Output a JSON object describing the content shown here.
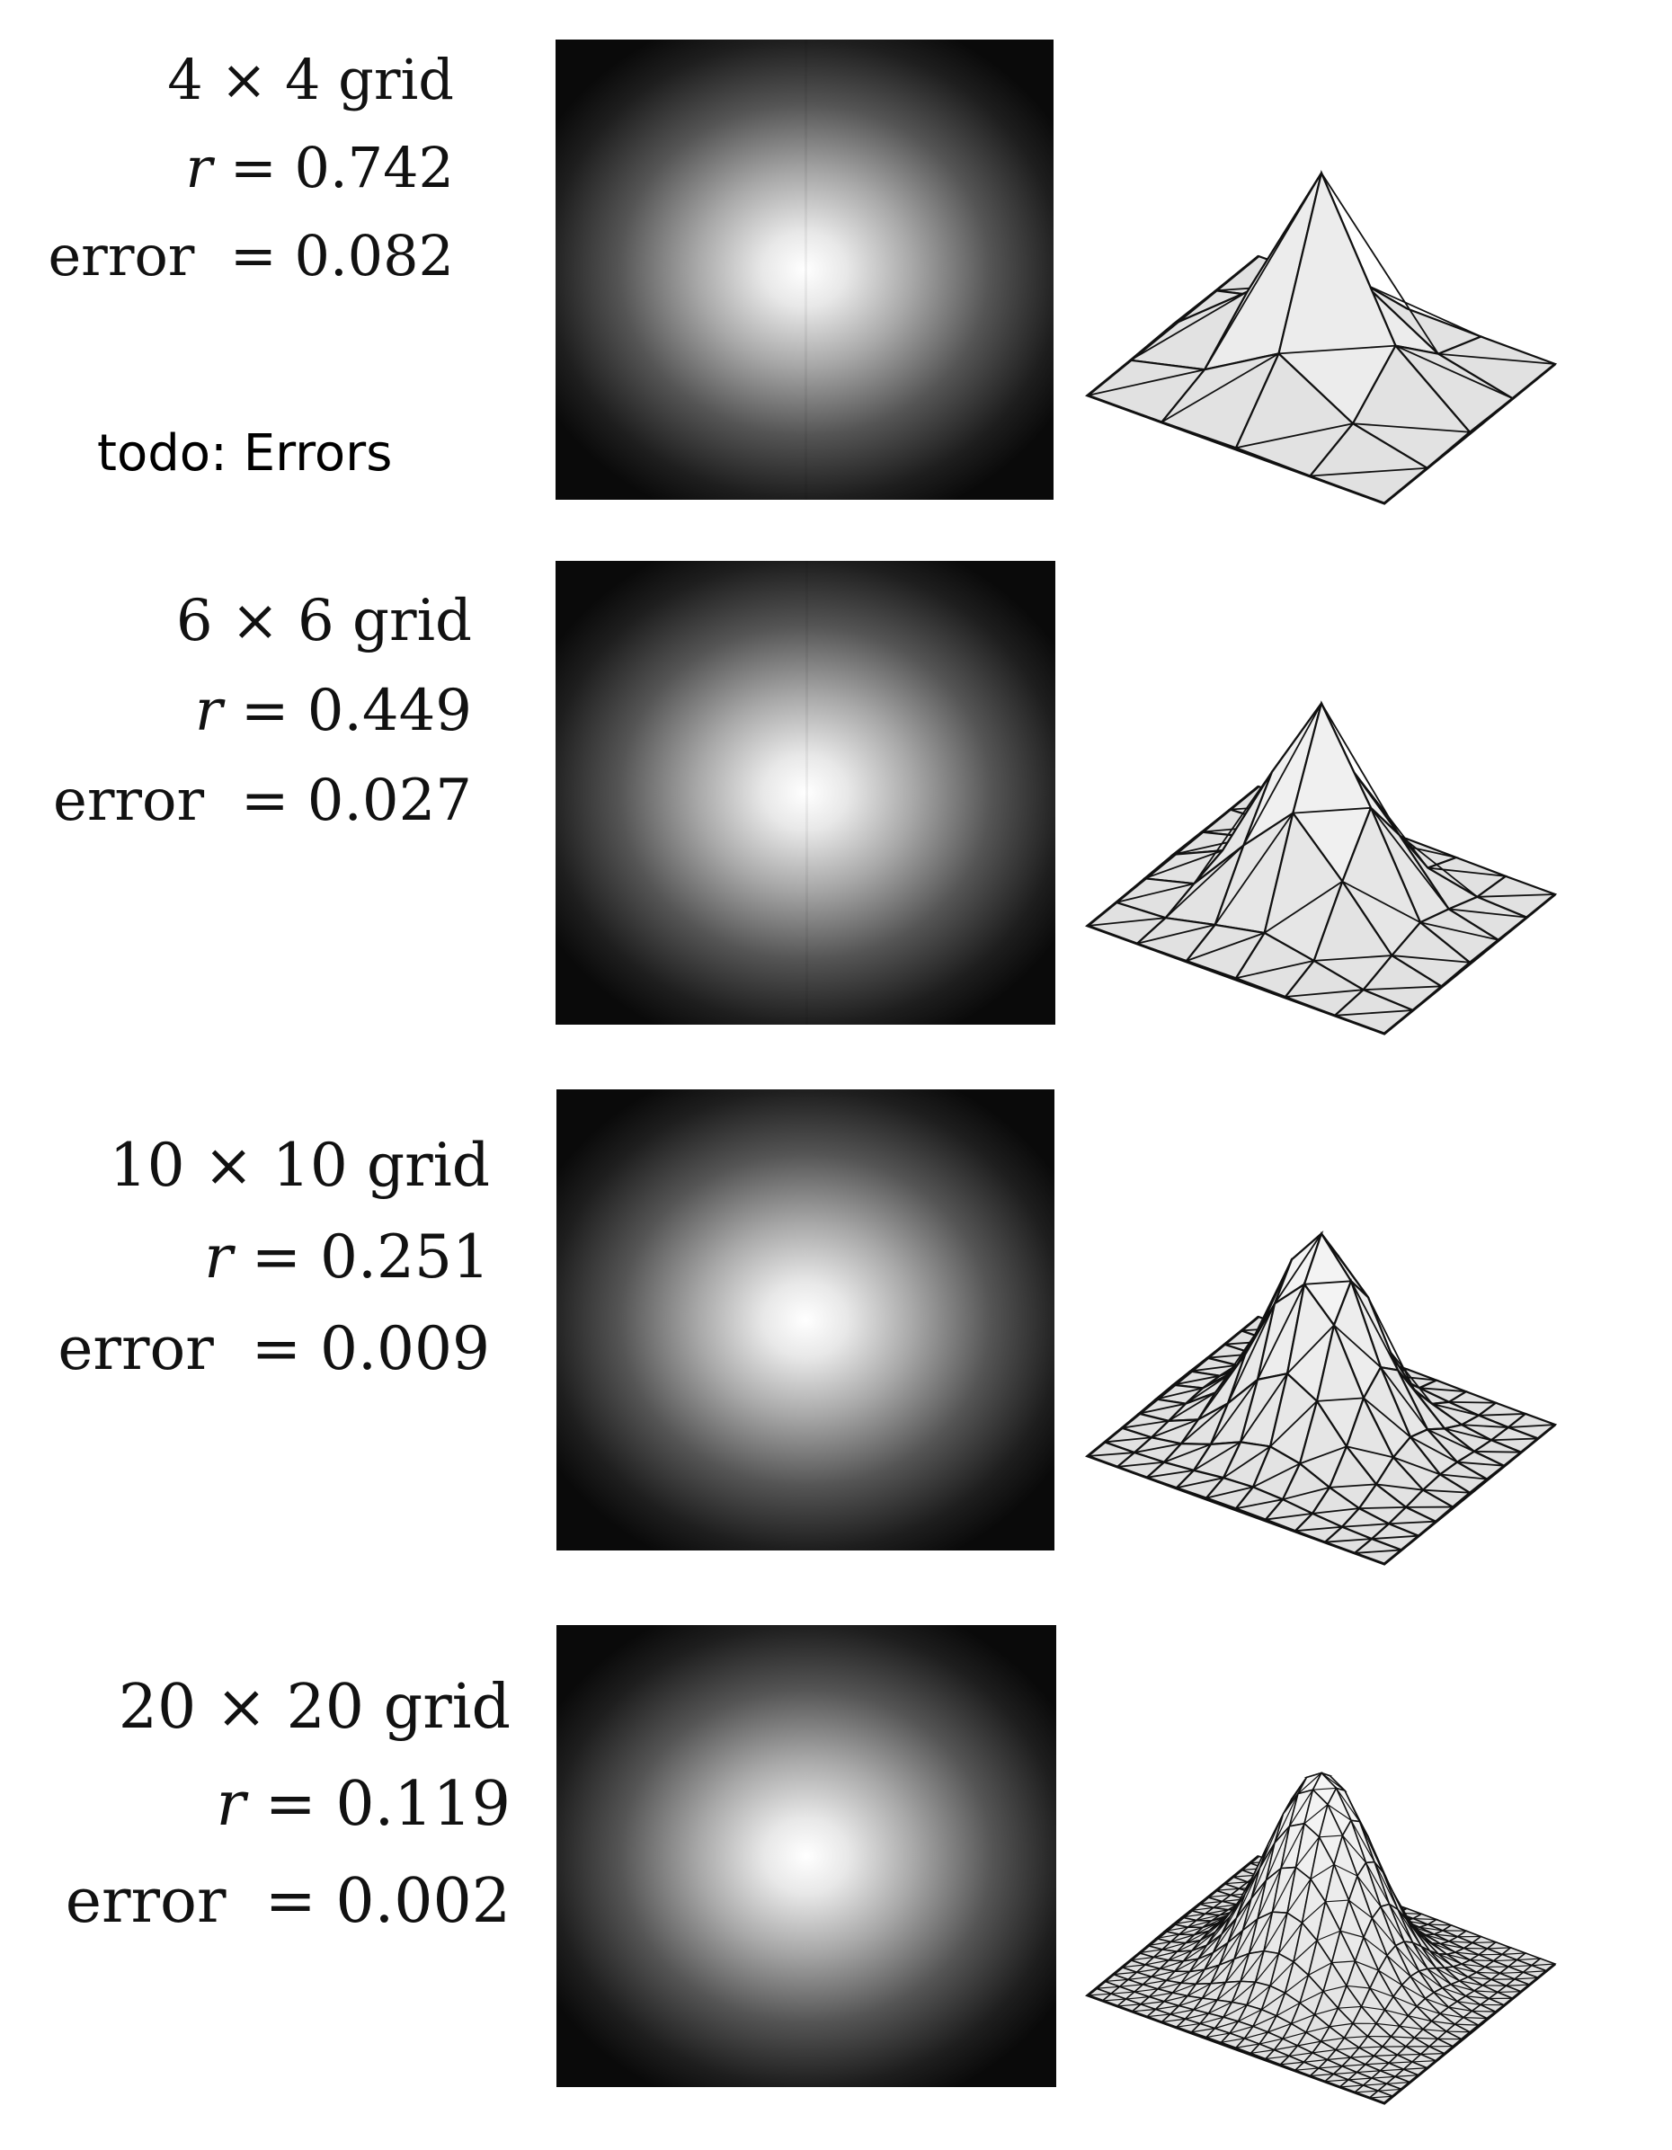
{
  "rows": [
    {
      "grid": "4 × 4 grid",
      "r_symbol": "r",
      "r_value": "= 0.742",
      "error_label": "error",
      "error_value": "= 0.082",
      "mesh_n": 4
    },
    {
      "grid": "6 × 6 grid",
      "r_symbol": "r",
      "r_value": "= 0.449",
      "error_label": "error",
      "error_value": "= 0.027",
      "mesh_n": 6
    },
    {
      "grid": "10 × 10 grid",
      "r_symbol": "r",
      "r_value": "= 0.251",
      "error_label": "error",
      "error_value": "= 0.009",
      "mesh_n": 10
    },
    {
      "grid": "20 × 20 grid",
      "r_symbol": "r",
      "r_value": "= 0.119",
      "error_label": "error",
      "error_value": "= 0.002",
      "mesh_n": 20
    }
  ],
  "note": "todo: Errors",
  "colors": {
    "background": "#ffffff",
    "text": "#111111",
    "mesh_stroke": "#111111",
    "mesh_fill": "#ececec"
  }
}
